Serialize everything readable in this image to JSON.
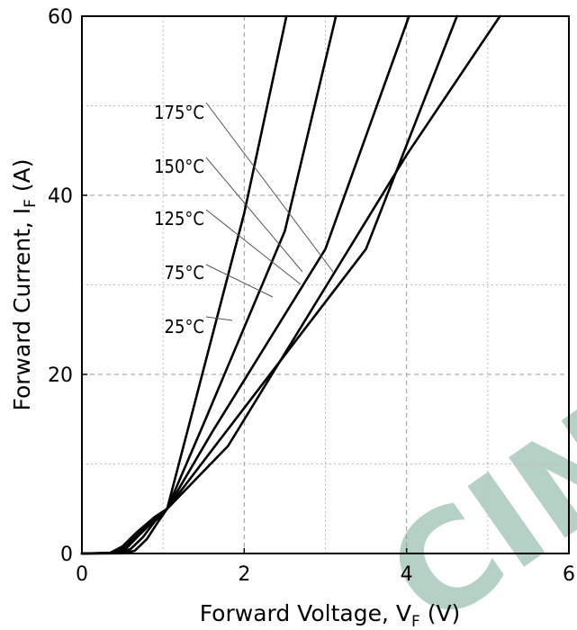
{
  "chart_data": {
    "type": "line",
    "xlabel": {
      "main": "Forward Voltage, V",
      "sub": "F",
      "unit": "(V)"
    },
    "ylabel": {
      "main": "Forward Current, I",
      "sub": "F",
      "unit": "(A)"
    },
    "xlim": [
      0,
      6
    ],
    "ylim": [
      0,
      60
    ],
    "xticks": [
      0,
      2,
      4,
      6
    ],
    "yticks": [
      0,
      20,
      40,
      60
    ],
    "grid": true,
    "series": [
      {
        "name": "25°C",
        "x": [
          0,
          0.5,
          0.65,
          0.8,
          0.95,
          1.05,
          1.35,
          2.0,
          2.52
        ],
        "y": [
          0,
          0.02,
          0.3,
          1.6,
          3.7,
          5.0,
          15.4,
          38.0,
          60
        ]
      },
      {
        "name": "75°C",
        "x": [
          0,
          0.45,
          0.6,
          0.75,
          0.9,
          1.05,
          1.5,
          2.5,
          3.13
        ],
        "y": [
          0,
          0.03,
          0.5,
          1.8,
          3.6,
          5.0,
          14.5,
          36.0,
          60
        ]
      },
      {
        "name": "125°C",
        "x": [
          0,
          0.4,
          0.55,
          0.7,
          0.9,
          1.05,
          1.6,
          3.0,
          4.03
        ],
        "y": [
          0,
          0.05,
          0.6,
          2.0,
          3.8,
          5.0,
          13.5,
          34.0,
          60
        ]
      },
      {
        "name": "150°C",
        "x": [
          0,
          0.38,
          0.52,
          0.7,
          0.9,
          1.05,
          1.7,
          3.5,
          4.62
        ],
        "y": [
          0,
          0.06,
          0.7,
          2.2,
          4.0,
          5.0,
          12.7,
          34.0,
          60
        ]
      },
      {
        "name": "175°C",
        "x": [
          0,
          0.35,
          0.5,
          0.68,
          0.9,
          1.05,
          1.8,
          4.0,
          5.15
        ],
        "y": [
          0,
          0.08,
          0.8,
          2.4,
          4.1,
          5.0,
          12.0,
          44.5,
          60
        ]
      }
    ],
    "labels": [
      {
        "text": "175°C",
        "series": "175°C"
      },
      {
        "text": "150°C",
        "series": "150°C"
      },
      {
        "text": "125°C",
        "series": "125°C"
      },
      {
        "text": "75°C",
        "series": "125°C"
      },
      {
        "text": "25°C",
        "series": "125°C"
      }
    ]
  },
  "watermark": "CINE"
}
